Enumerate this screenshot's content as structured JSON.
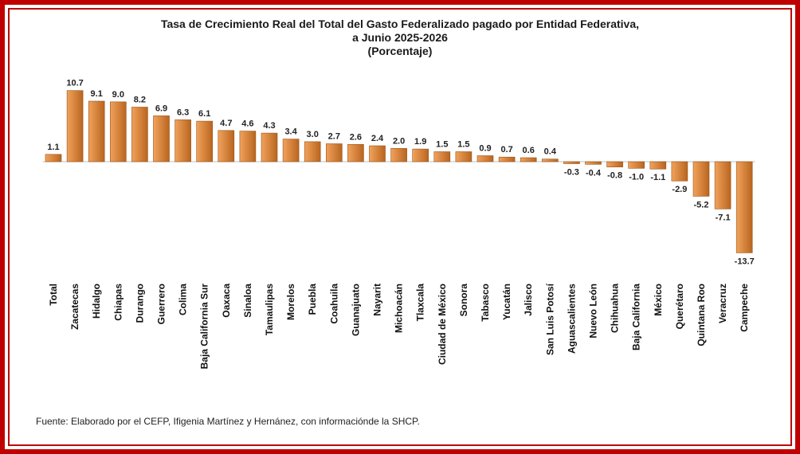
{
  "chart_data": {
    "type": "bar",
    "title_lines": [
      "Tasa de Crecimiento Real del Total del Gasto Federalizado pagado por Entidad Federativa,",
      "a Junio 2025-2026",
      "(Porcentaje)"
    ],
    "xlabel": "",
    "ylabel": "",
    "grid": false,
    "legend": "none",
    "categories": [
      "Total",
      "Zacatecas",
      "Hidalgo",
      "Chiapas",
      "Durango",
      "Guerrero",
      "Colima",
      "Baja California Sur",
      "Oaxaca",
      "Sinaloa",
      "Tamaulipas",
      "Morelos",
      "Puebla",
      "Coahuila",
      "Guanajuato",
      "Nayarit",
      "Michoacán",
      "Tlaxcala",
      "Ciudad de México",
      "Sonora",
      "Tabasco",
      "Yucatán",
      "Jalisco",
      "San Luis Potosí",
      "Aguascalientes",
      "Nuevo León",
      "Chihuahua",
      "Baja California",
      "México",
      "Querétaro",
      "Quintana Roo",
      "Veracruz",
      "Campeche"
    ],
    "values": [
      1.1,
      10.7,
      9.1,
      9.0,
      8.2,
      6.9,
      6.3,
      6.1,
      4.7,
      4.6,
      4.3,
      3.4,
      3.0,
      2.7,
      2.6,
      2.4,
      2.0,
      1.9,
      1.5,
      1.5,
      0.9,
      0.7,
      0.6,
      0.4,
      -0.3,
      -0.4,
      -0.8,
      -1.0,
      -1.1,
      -2.9,
      -5.2,
      -7.1,
      -13.7
    ],
    "value_labels": [
      "1.1",
      "10.7",
      "9.1",
      "9.0",
      "8.2",
      "6.9",
      "6.3",
      "6.1",
      "4.7",
      "4.6",
      "4.3",
      "3.4",
      "3.0",
      "2.7",
      "2.6",
      "2.4",
      "2.0",
      "1.9",
      "1.5",
      "1.5",
      "0.9",
      "0.7",
      "0.6",
      "0.4",
      "-0.3",
      "-0.4",
      "-0.8",
      "-1.0",
      "-1.1",
      "-2.9",
      "-5.2",
      "-7.1",
      "-13.7"
    ],
    "ylim": [
      -13.7,
      10.7
    ],
    "colors": {
      "bar_top": "#f2a25c",
      "bar_bottom": "#b8651f",
      "bar_stroke": "#9a5317",
      "frame": "#c00000"
    }
  },
  "source": "Fuente: Elaborado por el CEFP, Ifigenia Martínez y Hernánez, con informaciónde la SHCP."
}
